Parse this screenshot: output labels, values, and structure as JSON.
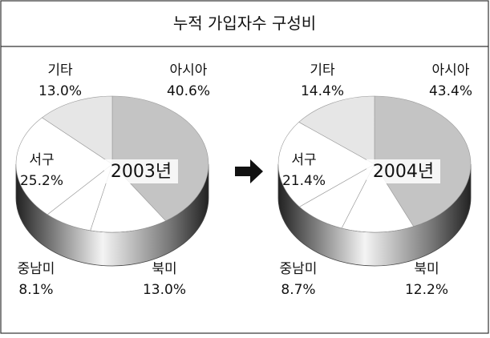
{
  "title": "누적 가입자수 구성비",
  "chart_data": [
    {
      "type": "pie",
      "title": "2003년",
      "categories": [
        "아시아",
        "북미",
        "중남미",
        "서구",
        "기타"
      ],
      "values": [
        40.6,
        13.0,
        8.1,
        25.2,
        13.0
      ],
      "value_labels": [
        "40.6%",
        "13.0%",
        "8.1%",
        "25.2%",
        "13.0%"
      ],
      "colors": [
        "#c4c4c4",
        "#ffffff",
        "#ffffff",
        "#ffffff",
        "#e6e6e6"
      ]
    },
    {
      "type": "pie",
      "title": "2004년",
      "categories": [
        "아시아",
        "북미",
        "중남미",
        "서구",
        "기타"
      ],
      "values": [
        43.4,
        12.2,
        8.7,
        21.4,
        14.4
      ],
      "value_labels": [
        "43.4%",
        "12.2%",
        "8.7%",
        "21.4%",
        "14.4%"
      ],
      "colors": [
        "#c4c4c4",
        "#ffffff",
        "#ffffff",
        "#ffffff",
        "#e6e6e6"
      ]
    }
  ]
}
